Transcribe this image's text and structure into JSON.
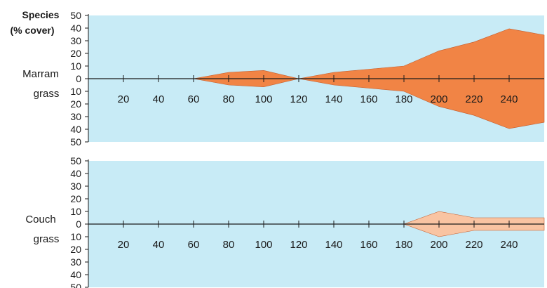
{
  "chart_data": {
    "type": "area",
    "header": [
      "Species",
      "(% cover)"
    ],
    "x_ticks": [
      20,
      40,
      60,
      80,
      100,
      120,
      140,
      160,
      180,
      200,
      220,
      240
    ],
    "y_ticks": [
      50,
      40,
      30,
      20,
      10,
      0,
      10,
      20,
      30,
      40,
      50
    ],
    "ylim": [
      -50,
      50
    ],
    "xlim": [
      0,
      260
    ],
    "panels": [
      {
        "label": [
          "Marram",
          "grass"
        ],
        "color": "#f18445",
        "x": [
          60,
          80,
          100,
          120,
          140,
          160,
          180,
          200,
          220,
          240,
          260
        ],
        "values": [
          0,
          5,
          6.5,
          0,
          5,
          7.5,
          10,
          22,
          29,
          39.5,
          34.5
        ]
      },
      {
        "label": [
          "Couch",
          "grass"
        ],
        "color": "#f9c4a2",
        "x": [
          180,
          200,
          220,
          240,
          260
        ],
        "values": [
          0,
          10,
          5,
          5,
          5
        ]
      }
    ],
    "colors": {
      "background": "#c8ebf6",
      "axis": "#1a1a1a",
      "outline": "#c45c2c"
    }
  }
}
